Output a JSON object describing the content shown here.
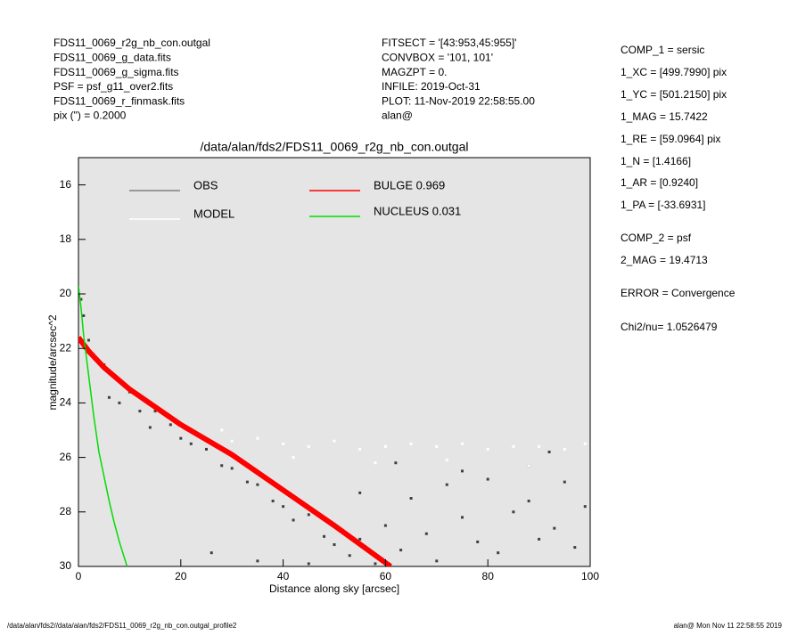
{
  "info_left": [
    "FDS11_0069_r2g_nb_con.outgal",
    "FDS11_0069_g_data.fits",
    "FDS11_0069_g_sigma.fits",
    "PSF     = psf_g11_over2.fits",
    "FDS11_0069_r_finmask.fits",
    "pix (\") =  0.2000"
  ],
  "info_mid": [
    "FITSECT = '[43:953,45:955]'",
    "CONVBOX = '101, 101'",
    "MAGZPT  =                0.",
    "INFILE: 2019-Oct-31",
    "PLOT: 11-Nov-2019 22:58:55.00",
    "alan@"
  ],
  "info_right": [
    "COMP_1  = sersic",
    "1_XC    = [499.7990] pix",
    "1_YC    = [501.2150] pix",
    "1_MAG   = 15.7422",
    "1_RE    = [59.0964] pix",
    "1_N     = [1.4166]",
    "1_AR    = [0.9240]",
    "1_PA    = [-33.6931]",
    "COMP_2  = psf",
    "2_MAG   = 19.4713",
    "ERROR   = Convergence",
    "Chi2/nu=       1.0526479"
  ],
  "footer_left": "/data/alan/fds2//data/alan/fds2/FDS11_0069_r2g_nb_con.outgal_profile2",
  "footer_right": "alan@  Mon Nov 11 22:58:55 2019",
  "chart_data": {
    "type": "scatter",
    "title": "/data/alan/fds2/FDS11_0069_r2g_nb_con.outgal",
    "x_label": "Distance along sky [arcsec]",
    "y_label": "magnitude/arcsec^2",
    "xlim": [
      0,
      100
    ],
    "xticks": [
      0,
      20,
      40,
      60,
      80,
      100
    ],
    "ylim": [
      30,
      15
    ],
    "yticks": [
      16,
      18,
      20,
      22,
      24,
      26,
      28,
      30
    ],
    "background": "#e5e5e5",
    "series": [
      {
        "name": "OBS",
        "color": "#404040",
        "legend_color": "#808080",
        "mode": "points",
        "x": [
          0.5,
          1,
          2,
          3,
          5,
          7,
          6,
          8,
          10,
          12,
          15,
          14,
          18,
          20,
          22,
          25,
          28,
          30,
          33,
          35,
          38,
          40,
          42,
          45,
          48,
          50,
          53,
          55,
          58,
          60,
          63,
          65,
          68,
          70,
          72,
          75,
          78,
          80,
          82,
          85,
          88,
          90,
          93,
          95,
          97,
          99,
          26,
          35,
          45,
          55,
          62,
          75,
          88,
          92
        ],
        "values": [
          20.2,
          20.8,
          21.7,
          22.2,
          22.6,
          23.0,
          23.8,
          24.0,
          23.6,
          24.3,
          24.3,
          24.9,
          24.8,
          25.3,
          25.5,
          25.7,
          26.3,
          26.4,
          26.9,
          27.0,
          27.6,
          27.8,
          28.3,
          28.1,
          28.9,
          29.2,
          29.6,
          29.0,
          29.9,
          28.5,
          29.4,
          27.5,
          28.8,
          29.8,
          27.0,
          28.2,
          29.1,
          26.8,
          29.5,
          28.0,
          27.6,
          29.0,
          28.6,
          26.9,
          29.3,
          27.8,
          29.5,
          29.8,
          29.9,
          27.3,
          26.2,
          26.5,
          26.3,
          25.8
        ]
      },
      {
        "name": "MODEL",
        "color": "#ffffff",
        "legend_color": "#ffffff",
        "mode": "points",
        "x": [
          1,
          3,
          6,
          10,
          15,
          20,
          25,
          30,
          35,
          40,
          45,
          50,
          55,
          60,
          65,
          70,
          75,
          80,
          85,
          90,
          95,
          99,
          28,
          42,
          58,
          72,
          88
        ],
        "values": [
          21.6,
          22.2,
          22.9,
          23.5,
          24.2,
          24.9,
          25.3,
          25.4,
          25.3,
          25.5,
          25.6,
          25.4,
          25.7,
          25.6,
          25.5,
          25.6,
          25.5,
          25.7,
          25.6,
          25.6,
          25.7,
          25.5,
          25.0,
          26.0,
          26.2,
          26.1,
          26.3
        ]
      },
      {
        "name": "BULGE  0.969",
        "color": "#ff0000",
        "legend_color": "#ff0000",
        "mode": "line",
        "x": [
          0,
          2,
          5,
          10,
          20,
          30,
          40,
          50,
          61
        ],
        "values": [
          21.6,
          22.1,
          22.7,
          23.5,
          24.8,
          25.9,
          27.2,
          28.5,
          30
        ]
      },
      {
        "name": "NUCLEUS  0.031",
        "color": "#00dd00",
        "legend_color": "#00dd00",
        "mode": "line",
        "x": [
          0,
          0.5,
          1,
          2,
          3,
          4,
          5,
          6,
          7,
          8,
          9,
          9.5
        ],
        "values": [
          19.7,
          20.5,
          21.5,
          23.0,
          24.5,
          25.8,
          26.7,
          27.6,
          28.4,
          29.1,
          29.7,
          30
        ]
      }
    ]
  }
}
